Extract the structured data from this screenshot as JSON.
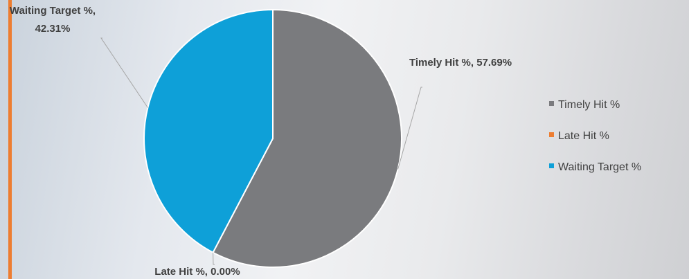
{
  "chart_data": {
    "type": "pie",
    "categories": [
      "Timely Hit %",
      "Late Hit %",
      "Waiting Target %"
    ],
    "values": [
      57.69,
      0,
      42.31
    ],
    "value_labels": [
      "Timely Hit %, 57.69%",
      "Late Hit %, 0.00%",
      "Waiting Target %, 42.31%"
    ],
    "colors": [
      "#7a7b7e",
      "#ed7d31",
      "#0ea0d8"
    ],
    "legend": "right"
  }
}
